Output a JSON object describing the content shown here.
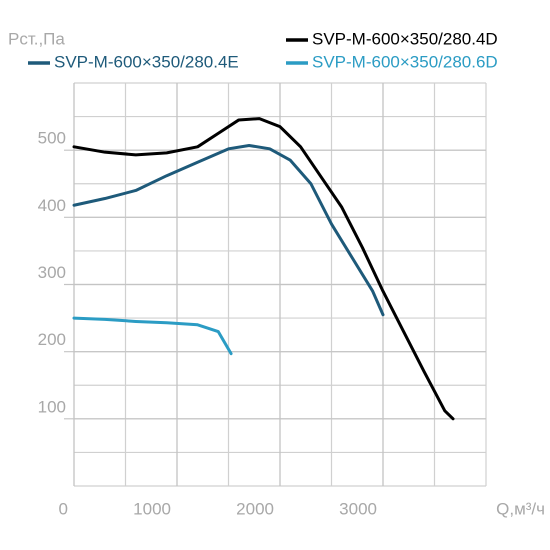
{
  "chart_data": {
    "type": "line",
    "y_label": "Pст.,Па",
    "x_label": "Q,м³/ч",
    "xlim": [
      0,
      4000
    ],
    "ylim": [
      0,
      600
    ],
    "xticks": [
      0,
      1000,
      2000,
      3000
    ],
    "yticks": [
      100,
      200,
      300,
      400,
      500
    ],
    "grid": true,
    "minor_grid": true,
    "series": [
      {
        "name": "SVP-M-600×350/280.4D",
        "color": "#000000",
        "x": [
          0,
          300,
          600,
          900,
          1200,
          1400,
          1600,
          1800,
          2000,
          2200,
          2400,
          2600,
          2800,
          3000,
          3200,
          3400,
          3600,
          3680
        ],
        "values": [
          505,
          497,
          493,
          496,
          505,
          525,
          545,
          547,
          535,
          505,
          460,
          415,
          355,
          290,
          230,
          170,
          112,
          100
        ]
      },
      {
        "name": "SVP-M-600×350/280.4E",
        "color": "#1e5a7a",
        "x": [
          0,
          300,
          600,
          900,
          1200,
          1500,
          1700,
          1900,
          2100,
          2300,
          2500,
          2700,
          2900,
          3000
        ],
        "values": [
          418,
          428,
          440,
          462,
          482,
          502,
          507,
          502,
          485,
          450,
          390,
          340,
          290,
          255
        ]
      },
      {
        "name": "SVP-M-600×350/280.6D",
        "color": "#2b9cc4",
        "x": [
          0,
          300,
          600,
          900,
          1200,
          1400,
          1525
        ],
        "values": [
          250,
          248,
          245,
          243,
          240,
          230,
          197
        ]
      }
    ]
  }
}
